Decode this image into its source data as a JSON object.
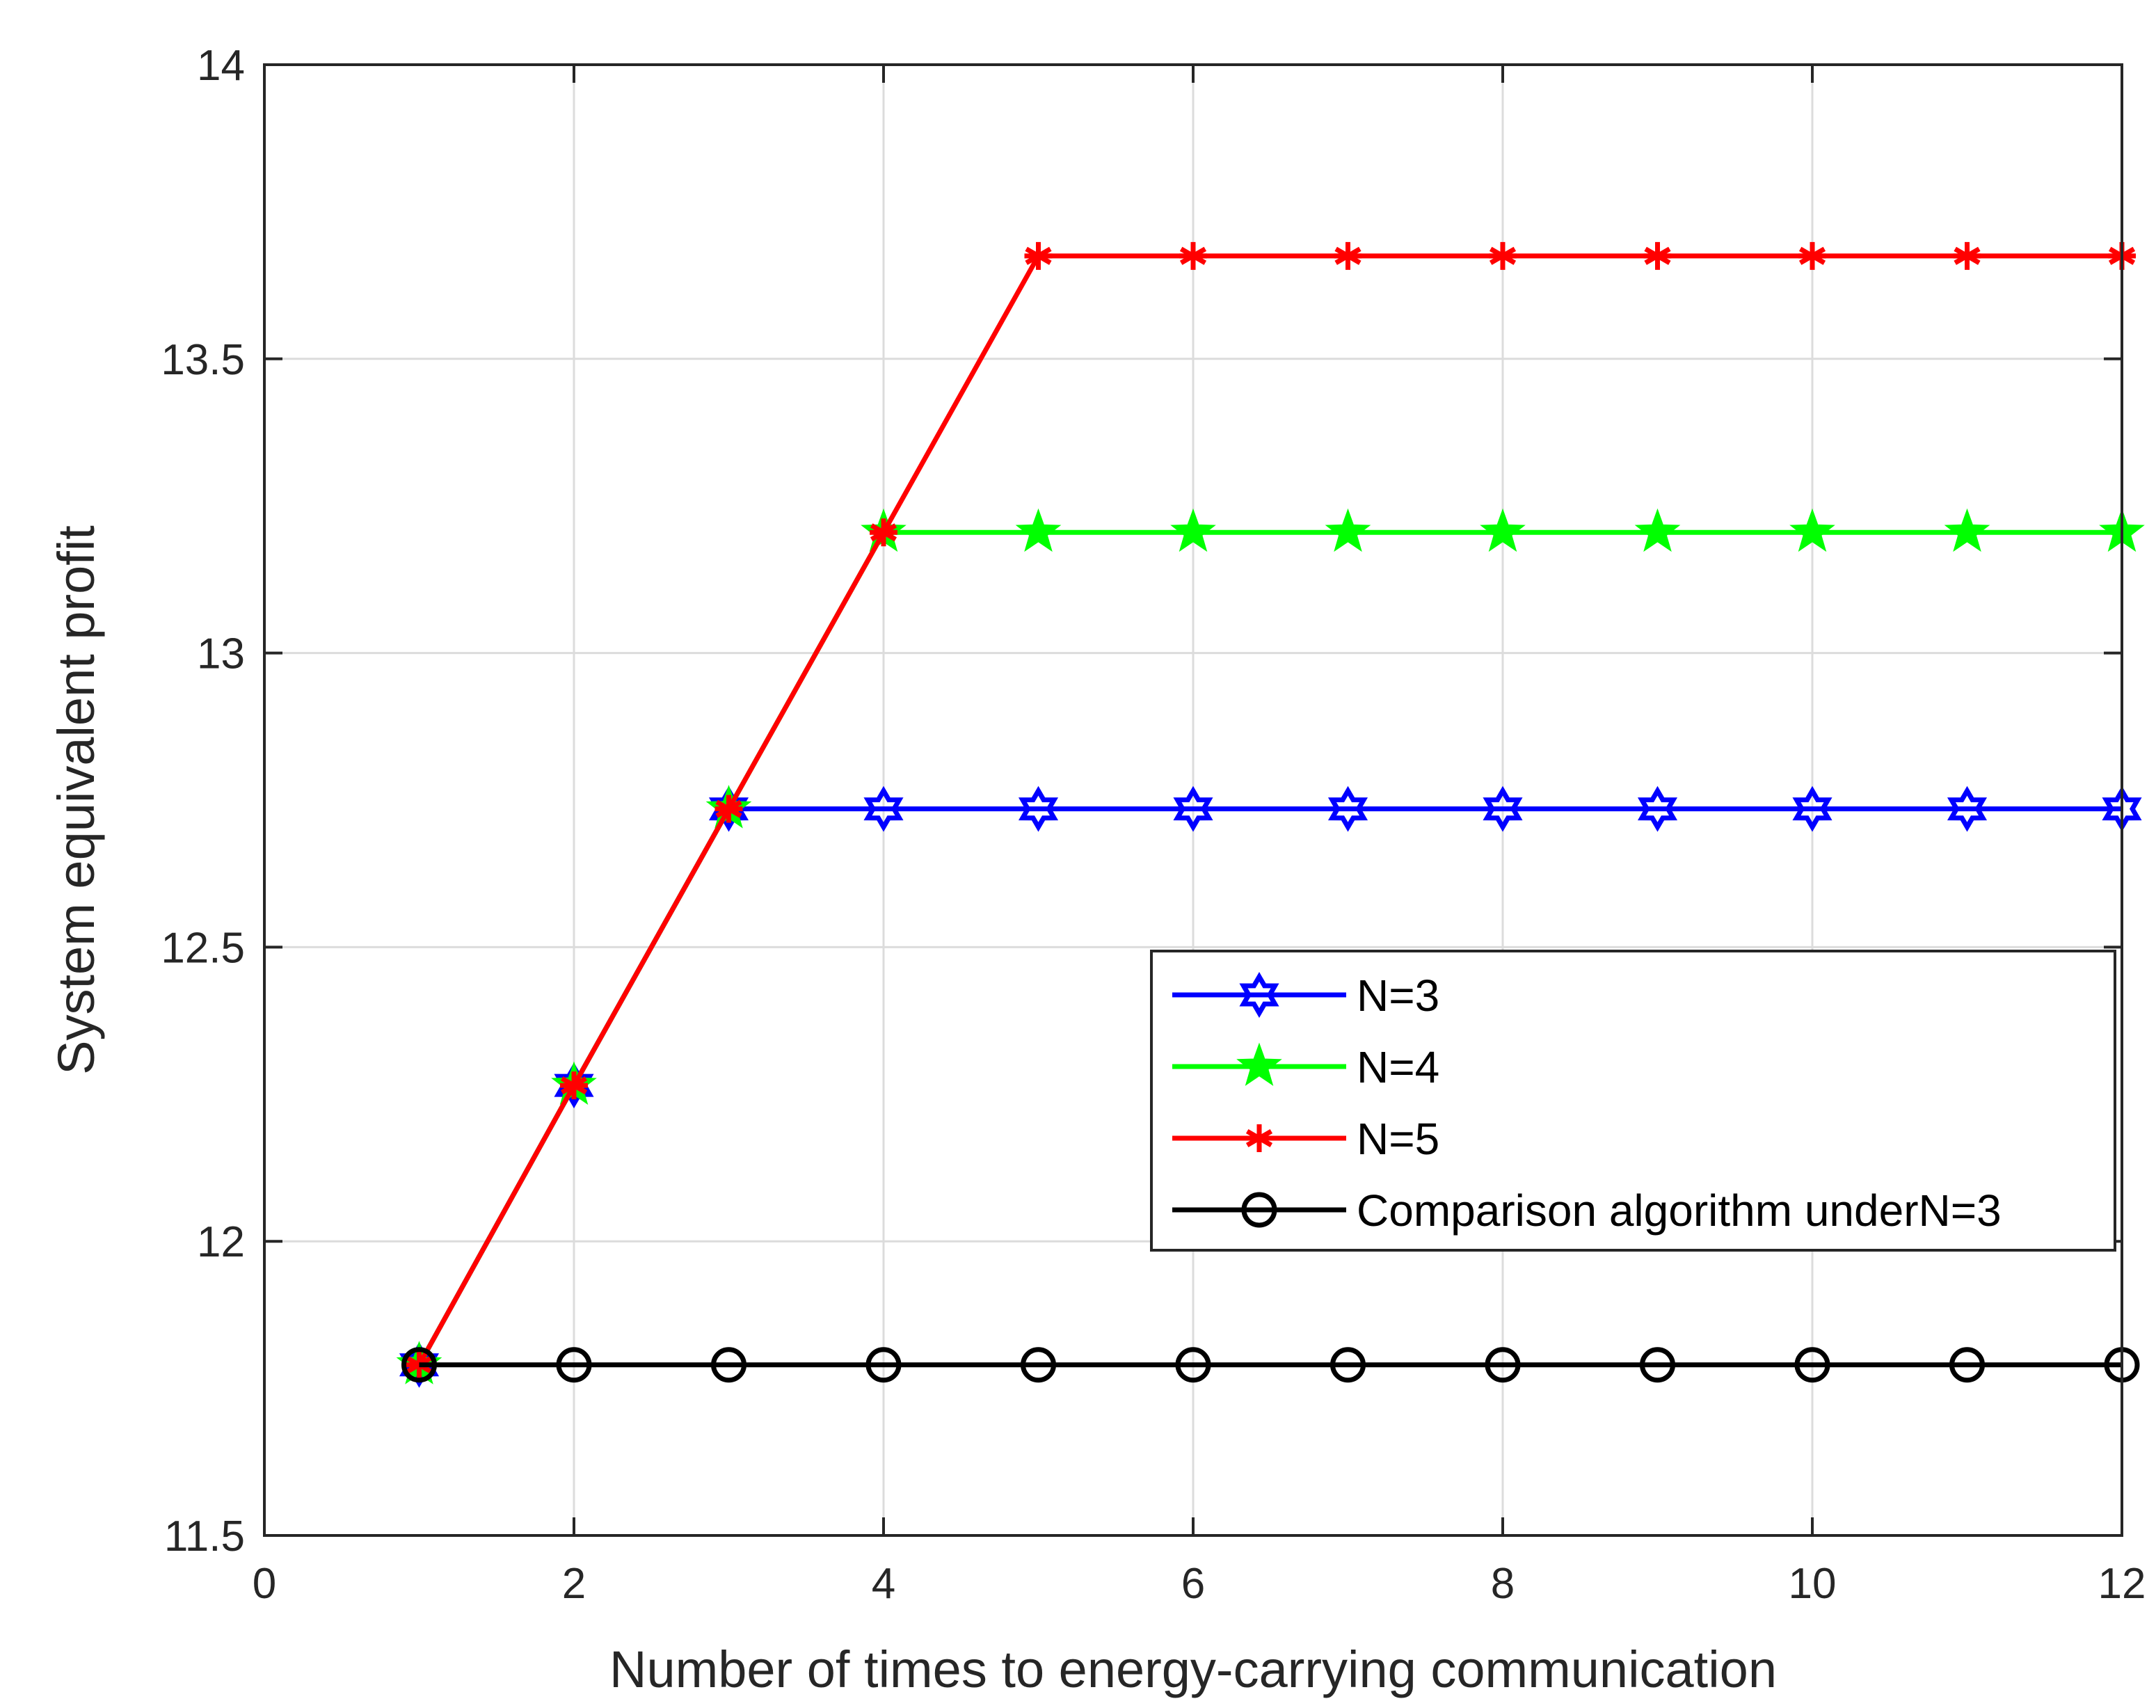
{
  "chart_data": {
    "type": "line",
    "title": "",
    "xlabel": "Number of times to energy-carrying communication",
    "ylabel": "System equivalent profit",
    "xlim": [
      0,
      12
    ],
    "ylim": [
      11.5,
      14
    ],
    "xticks": [
      0,
      2,
      4,
      6,
      8,
      10,
      12
    ],
    "yticks": [
      11.5,
      12,
      12.5,
      13,
      13.5,
      14
    ],
    "xtick_labels": [
      "0",
      "2",
      "4",
      "6",
      "8",
      "10",
      "12"
    ],
    "ytick_labels": [
      "11.5",
      "12",
      "12.5",
      "13",
      "13.5",
      "14"
    ],
    "grid": true,
    "legend_position": "right",
    "x": [
      1,
      2,
      3,
      4,
      5,
      6,
      7,
      8,
      9,
      10,
      11,
      12
    ],
    "series": [
      {
        "name": "N=3",
        "color": "#0000ff",
        "marker": "hexagram",
        "values": [
          11.79,
          12.265,
          12.735,
          12.735,
          12.735,
          12.735,
          12.735,
          12.735,
          12.735,
          12.735,
          12.735,
          12.735
        ]
      },
      {
        "name": "N=4",
        "color": "#00ff00",
        "marker": "pentagram",
        "values": [
          11.79,
          12.265,
          12.735,
          13.205,
          13.205,
          13.205,
          13.205,
          13.205,
          13.205,
          13.205,
          13.205,
          13.205
        ]
      },
      {
        "name": "N=5",
        "color": "#ff0000",
        "marker": "asterisk",
        "values": [
          11.79,
          12.265,
          12.735,
          13.205,
          13.675,
          13.675,
          13.675,
          13.675,
          13.675,
          13.675,
          13.675,
          13.675
        ]
      },
      {
        "name": "Comparison algorithm underN=3",
        "color": "#000000",
        "marker": "circle",
        "values": [
          11.79,
          11.79,
          11.79,
          11.79,
          11.79,
          11.79,
          11.79,
          11.79,
          11.79,
          11.79,
          11.79,
          11.79
        ]
      }
    ]
  }
}
